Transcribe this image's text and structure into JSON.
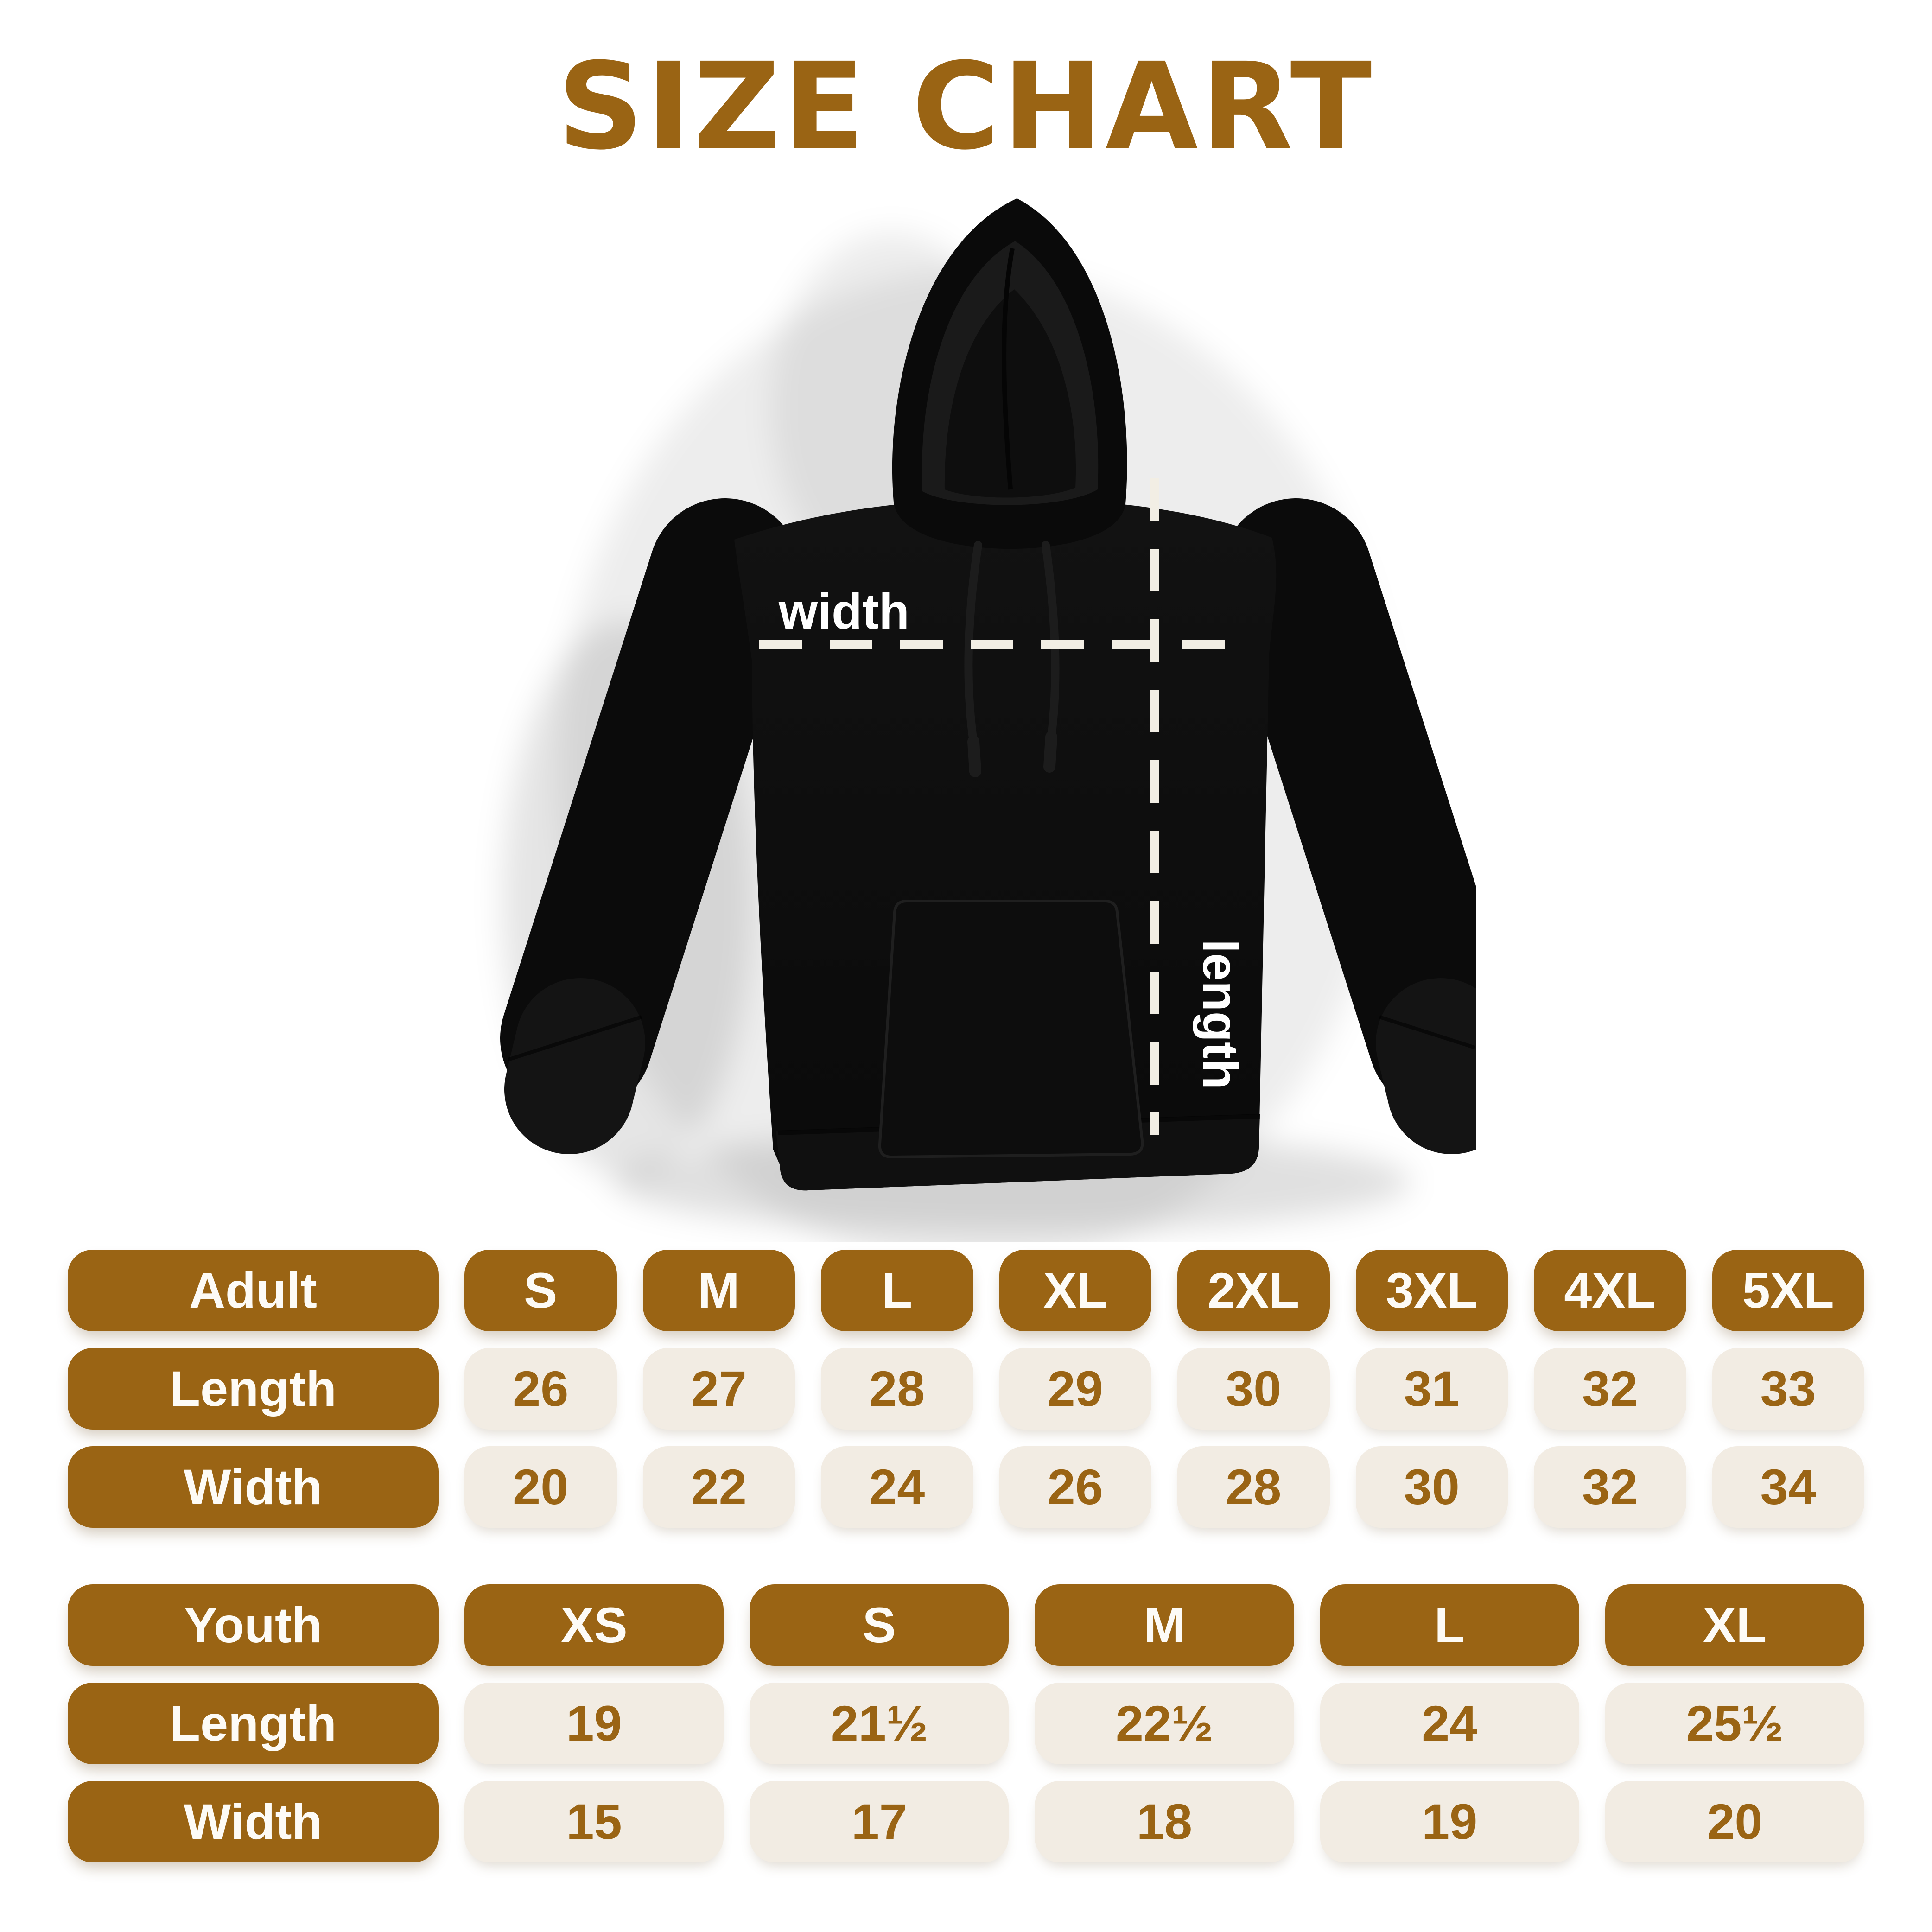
{
  "title": "SIZE CHART",
  "colors": {
    "brown": "#9A6414",
    "cream": "#F2ECE3",
    "pill_text_white": "#FDFBF6",
    "dash_line": "#F2EEE4",
    "hoodie_black": "#0B0B0B",
    "background": "#FFFFFF"
  },
  "hoodie": {
    "width_label": "width",
    "length_label": "length"
  },
  "adult_table": {
    "header": [
      "Adult",
      "S",
      "M",
      "L",
      "XL",
      "2XL",
      "3XL",
      "4XL",
      "5XL"
    ],
    "rows": [
      {
        "label": "Length",
        "values": [
          "26",
          "27",
          "28",
          "29",
          "30",
          "31",
          "32",
          "33"
        ]
      },
      {
        "label": "Width",
        "values": [
          "20",
          "22",
          "24",
          "26",
          "28",
          "30",
          "32",
          "34"
        ]
      }
    ]
  },
  "youth_table": {
    "header": [
      "Youth",
      "XS",
      "S",
      "M",
      "L",
      "XL"
    ],
    "rows": [
      {
        "label": "Length",
        "values": [
          "19",
          "21½",
          "22½",
          "24",
          "25½"
        ]
      },
      {
        "label": "Width",
        "values": [
          "15",
          "17",
          "18",
          "19",
          "20"
        ]
      }
    ]
  },
  "chart_data": [
    {
      "type": "table",
      "title": "Adult hoodie sizes (inches)",
      "columns": [
        "Adult",
        "S",
        "M",
        "L",
        "XL",
        "2XL",
        "3XL",
        "4XL",
        "5XL"
      ],
      "rows": [
        [
          "Length",
          26,
          27,
          28,
          29,
          30,
          31,
          32,
          33
        ],
        [
          "Width",
          20,
          22,
          24,
          26,
          28,
          30,
          32,
          34
        ]
      ]
    },
    {
      "type": "table",
      "title": "Youth hoodie sizes (inches)",
      "columns": [
        "Youth",
        "XS",
        "S",
        "M",
        "L",
        "XL"
      ],
      "rows": [
        [
          "Length",
          19,
          21.5,
          22.5,
          24,
          25.5
        ],
        [
          "Width",
          15,
          17,
          18,
          19,
          20
        ]
      ]
    }
  ]
}
